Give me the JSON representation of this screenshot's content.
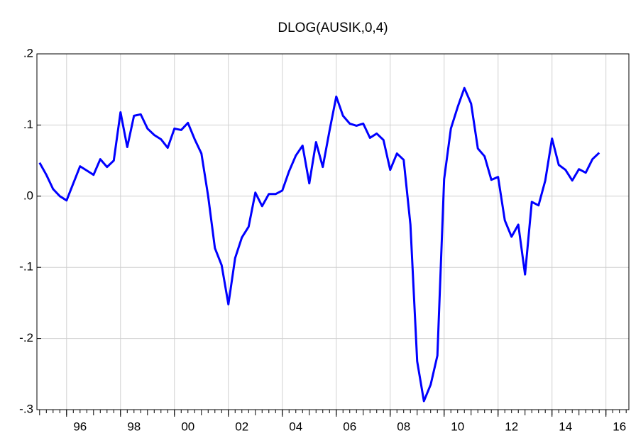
{
  "chart_data": {
    "type": "line",
    "title": "DLOG(AUSIK,0,4)",
    "x": [
      1995,
      1995.25,
      1995.5,
      1995.75,
      1996,
      1996.25,
      1996.5,
      1996.75,
      1997,
      1997.25,
      1997.5,
      1997.75,
      1998,
      1998.25,
      1998.5,
      1998.75,
      1999,
      1999.25,
      1999.5,
      1999.75,
      2000,
      2000.25,
      2000.5,
      2000.75,
      2001,
      2001.25,
      2001.5,
      2001.75,
      2002,
      2002.25,
      2002.5,
      2002.75,
      2003,
      2003.25,
      2003.5,
      2003.75,
      2004,
      2004.25,
      2004.5,
      2004.75,
      2005,
      2005.25,
      2005.5,
      2005.75,
      2006,
      2006.25,
      2006.5,
      2006.75,
      2007,
      2007.25,
      2007.5,
      2007.75,
      2008,
      2008.25,
      2008.5,
      2008.75,
      2009,
      2009.25,
      2009.5,
      2009.75,
      2010,
      2010.25,
      2010.5,
      2010.75,
      2011,
      2011.25,
      2011.5,
      2011.75,
      2012,
      2012.25,
      2012.5,
      2012.75,
      2013,
      2013.25,
      2013.5,
      2013.75,
      2014,
      2014.25,
      2014.5,
      2014.75,
      2015,
      2015.25,
      2015.5,
      2015.75
    ],
    "series": [
      {
        "name": "DLOG(AUSIK,0,4)",
        "color": "#0000ff",
        "values": [
          0.047,
          0.03,
          0.01,
          0.0,
          -0.006,
          0.018,
          0.042,
          0.036,
          0.03,
          0.052,
          0.041,
          0.05,
          0.118,
          0.069,
          0.113,
          0.115,
          0.095,
          0.086,
          0.08,
          0.068,
          0.095,
          0.093,
          0.103,
          0.08,
          0.06,
          0.0,
          -0.073,
          -0.097,
          -0.152,
          -0.087,
          -0.058,
          -0.043,
          0.005,
          -0.014,
          0.003,
          0.003,
          0.008,
          0.035,
          0.057,
          0.071,
          0.018,
          0.076,
          0.041,
          0.092,
          0.14,
          0.113,
          0.102,
          0.099,
          0.102,
          0.082,
          0.088,
          0.079,
          0.037,
          0.06,
          0.051,
          -0.04,
          -0.232,
          -0.288,
          -0.265,
          -0.224,
          0.024,
          0.095,
          0.125,
          0.152,
          0.13,
          0.067,
          0.056,
          0.023,
          0.027,
          -0.034,
          -0.057,
          -0.04,
          -0.11,
          -0.008,
          -0.013,
          0.022,
          0.081,
          0.044,
          0.037,
          0.022,
          0.038,
          0.033,
          0.052,
          0.061
        ]
      }
    ],
    "xlim": [
      1994.9,
      2016.85
    ],
    "xticks": [
      {
        "value": 1996,
        "label": "96"
      },
      {
        "value": 1998,
        "label": "98"
      },
      {
        "value": 2000,
        "label": "00"
      },
      {
        "value": 2002,
        "label": "02"
      },
      {
        "value": 2004,
        "label": "04"
      },
      {
        "value": 2006,
        "label": "06"
      },
      {
        "value": 2008,
        "label": "08"
      },
      {
        "value": 2010,
        "label": "10"
      },
      {
        "value": 2012,
        "label": "12"
      },
      {
        "value": 2014,
        "label": "14"
      },
      {
        "value": 2016,
        "label": "16"
      }
    ],
    "ylim": [
      -0.3,
      0.2
    ],
    "yticks": [
      {
        "value": -0.3,
        "label": "-.3"
      },
      {
        "value": -0.2,
        "label": "-.2"
      },
      {
        "value": -0.1,
        "label": "-.1"
      },
      {
        "value": 0,
        "label": ".0"
      },
      {
        "value": 0.1,
        "label": ".1"
      },
      {
        "value": 0.2,
        "label": ".2"
      }
    ],
    "grid": true
  }
}
